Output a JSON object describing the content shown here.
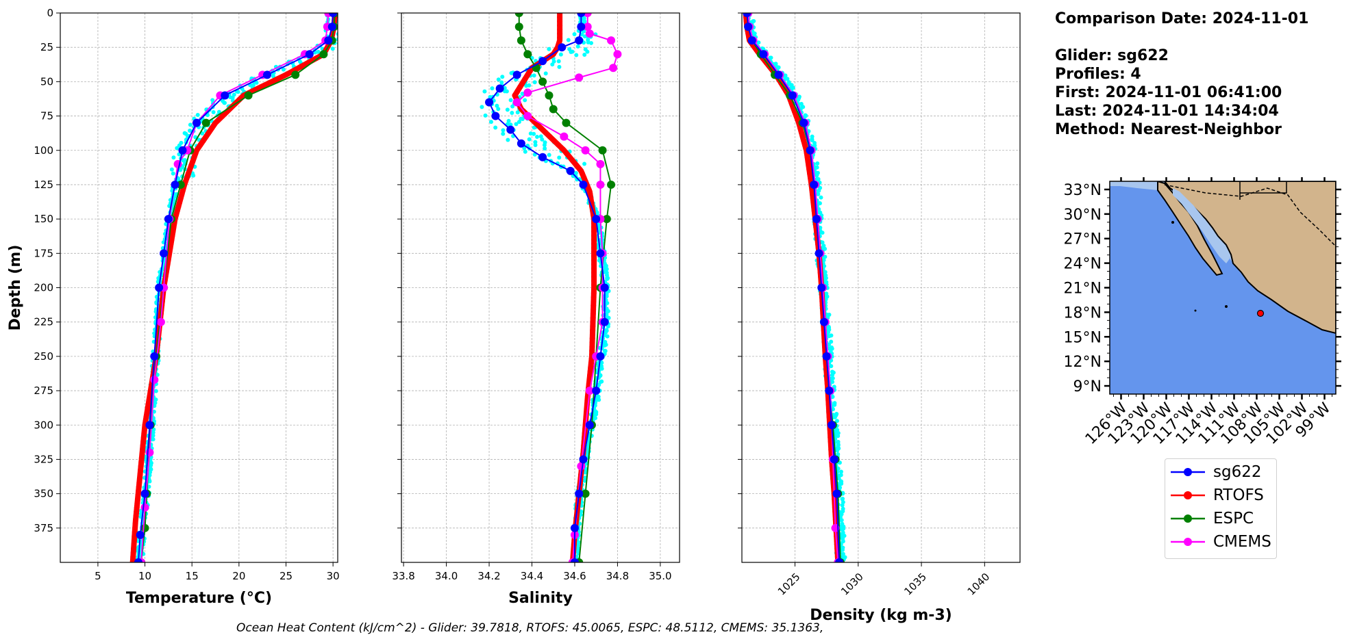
{
  "chart_data": [
    {
      "type": "line",
      "xlabel": "Temperature (°C)",
      "ylabel": "Depth (m)",
      "xlim": [
        1,
        30.5
      ],
      "ylim": [
        400,
        0
      ],
      "xticks": [
        5,
        10,
        15,
        20,
        25,
        30
      ],
      "yticks": [
        0,
        25,
        50,
        75,
        100,
        125,
        150,
        175,
        200,
        225,
        250,
        275,
        300,
        325,
        350,
        375
      ],
      "grid": true,
      "series": [
        {
          "name": "sg622",
          "color": "#0000ff",
          "x": [
            30.0,
            29.9,
            29.5,
            27.5,
            23.0,
            18.5,
            15.5,
            14.0,
            13.2,
            12.5,
            12.0,
            11.5,
            11.0,
            10.5,
            10.0,
            9.5,
            9.3
          ],
          "y": [
            0,
            10,
            20,
            30,
            45,
            60,
            80,
            100,
            125,
            150,
            175,
            200,
            250,
            300,
            350,
            380,
            400
          ]
        },
        {
          "name": "RTOFS",
          "color": "#ff0000",
          "x": [
            30.2,
            30.1,
            29.8,
            29.0,
            25.0,
            20.5,
            17.5,
            15.5,
            14.2,
            13.2,
            12.0,
            11.2,
            10.0,
            9.0,
            8.7
          ],
          "y": [
            0,
            10,
            20,
            30,
            45,
            60,
            80,
            100,
            125,
            150,
            200,
            250,
            300,
            370,
            400
          ]
        },
        {
          "name": "ESPC",
          "color": "#008000",
          "x": [
            30.2,
            30.1,
            29.9,
            29.0,
            26.0,
            21.0,
            16.5,
            14.8,
            13.8,
            12.8,
            12.0,
            11.2,
            10.6,
            10.2,
            10.0,
            9.6
          ],
          "y": [
            0,
            10,
            20,
            30,
            45,
            60,
            80,
            100,
            125,
            150,
            200,
            250,
            300,
            350,
            375,
            400
          ]
        },
        {
          "name": "CMEMS",
          "color": "#ff00ff",
          "x": [
            29.5,
            29.4,
            29.2,
            27.0,
            22.5,
            18.0,
            15.5,
            14.5,
            13.5,
            12.6,
            12.0,
            11.7,
            11.0,
            10.5,
            10.0,
            9.6
          ],
          "y": [
            0,
            10,
            20,
            30,
            45,
            60,
            80,
            100,
            110,
            150,
            200,
            225,
            267,
            320,
            360,
            400
          ]
        }
      ]
    },
    {
      "type": "line",
      "xlabel": "Salinity",
      "xlim": [
        33.79,
        35.09
      ],
      "ylim": [
        400,
        0
      ],
      "xticks": [
        33.8,
        34.0,
        34.2,
        34.4,
        34.6,
        34.8,
        35.0
      ],
      "grid": true,
      "series": [
        {
          "name": "sg622",
          "color": "#0000ff",
          "x": [
            34.63,
            34.63,
            34.62,
            34.54,
            34.45,
            34.33,
            34.25,
            34.2,
            34.23,
            34.3,
            34.35,
            34.45,
            34.58,
            34.64,
            34.7,
            34.72,
            34.74,
            34.74,
            34.72,
            34.7,
            34.67,
            34.64,
            34.62,
            34.6,
            34.6
          ],
          "y": [
            0,
            10,
            20,
            25,
            35,
            45,
            55,
            65,
            75,
            85,
            95,
            105,
            115,
            125,
            150,
            175,
            200,
            225,
            250,
            275,
            300,
            325,
            350,
            375,
            400
          ]
        },
        {
          "name": "RTOFS",
          "color": "#ff0000",
          "x": [
            34.53,
            34.53,
            34.53,
            34.52,
            34.5,
            34.4,
            34.32,
            34.35,
            34.45,
            34.55,
            34.63,
            34.67,
            34.69,
            34.69,
            34.68,
            34.66,
            34.64,
            34.62,
            34.6,
            34.59
          ],
          "y": [
            0,
            10,
            20,
            25,
            30,
            40,
            60,
            70,
            85,
            100,
            115,
            130,
            150,
            200,
            250,
            280,
            320,
            350,
            380,
            400
          ]
        },
        {
          "name": "ESPC",
          "color": "#008000",
          "x": [
            34.34,
            34.34,
            34.35,
            34.38,
            34.42,
            34.45,
            34.48,
            34.5,
            34.56,
            34.73,
            34.77,
            34.75,
            34.72,
            34.7,
            34.68,
            34.65,
            34.62
          ],
          "y": [
            0,
            10,
            20,
            30,
            40,
            50,
            60,
            70,
            80,
            100,
            125,
            150,
            200,
            250,
            300,
            350,
            400
          ]
        },
        {
          "name": "CMEMS",
          "color": "#ff00ff",
          "x": [
            34.66,
            34.66,
            34.67,
            34.77,
            34.8,
            34.78,
            34.62,
            34.38,
            34.33,
            34.38,
            34.55,
            34.65,
            34.72,
            34.72,
            34.72,
            34.73,
            34.73,
            34.73,
            34.7,
            34.67,
            34.63,
            34.6,
            34.59
          ],
          "y": [
            0,
            10,
            15,
            20,
            30,
            40,
            47,
            58,
            65,
            75,
            90,
            100,
            110,
            125,
            150,
            175,
            200,
            225,
            250,
            275,
            330,
            380,
            400
          ]
        }
      ]
    },
    {
      "type": "line",
      "xlabel": "Density (kg m-3)",
      "xlim": [
        1020.8,
        1042.8
      ],
      "ylim": [
        400,
        0
      ],
      "xticks": [
        1025,
        1030,
        1035,
        1040
      ],
      "grid": true,
      "series": [
        {
          "name": "sg622",
          "color": "#0000ff",
          "x": [
            1021.2,
            1021.3,
            1021.6,
            1022.5,
            1023.7,
            1024.8,
            1025.7,
            1026.2,
            1026.5,
            1026.7,
            1026.9,
            1027.1,
            1027.3,
            1027.5,
            1027.7,
            1027.9,
            1028.1,
            1028.3,
            1028.5
          ],
          "y": [
            0,
            10,
            20,
            30,
            45,
            60,
            80,
            100,
            125,
            150,
            175,
            200,
            225,
            250,
            275,
            300,
            325,
            350,
            400
          ]
        },
        {
          "name": "RTOFS",
          "color": "#ff0000",
          "x": [
            1021.1,
            1021.2,
            1021.4,
            1022.2,
            1023.5,
            1024.5,
            1025.3,
            1025.9,
            1026.3,
            1026.6,
            1026.9,
            1027.1,
            1027.4,
            1027.6,
            1027.9,
            1028.1,
            1028.4
          ],
          "y": [
            0,
            10,
            20,
            30,
            45,
            60,
            80,
            100,
            125,
            150,
            175,
            200,
            250,
            275,
            325,
            350,
            400
          ]
        },
        {
          "name": "ESPC",
          "color": "#008000",
          "x": [
            1021.2,
            1021.3,
            1021.6,
            1022.3,
            1023.4,
            1024.6,
            1025.6,
            1026.2,
            1026.5,
            1026.8,
            1027.0,
            1027.2,
            1027.5,
            1027.7,
            1028.0,
            1028.2,
            1028.4,
            1028.6
          ],
          "y": [
            0,
            10,
            20,
            30,
            45,
            60,
            80,
            100,
            125,
            150,
            175,
            200,
            250,
            275,
            300,
            325,
            350,
            400
          ]
        },
        {
          "name": "CMEMS",
          "color": "#ff00ff",
          "x": [
            1021.3,
            1021.4,
            1021.7,
            1022.6,
            1023.8,
            1024.9,
            1025.8,
            1026.3,
            1026.6,
            1026.8,
            1027.0,
            1027.2,
            1027.4,
            1027.6,
            1027.8,
            1028.0,
            1028.2,
            1028.4
          ],
          "y": [
            0,
            10,
            20,
            30,
            45,
            60,
            80,
            100,
            125,
            150,
            175,
            200,
            225,
            250,
            275,
            325,
            375,
            400
          ]
        }
      ]
    }
  ],
  "map": {
    "lon_labels": [
      "126°W",
      "123°W",
      "120°W",
      "117°W",
      "114°W",
      "111°W",
      "108°W",
      "105°W",
      "102°W",
      "99°W"
    ],
    "lat_labels": [
      "33°N",
      "30°N",
      "27°N",
      "24°N",
      "21°N",
      "18°N",
      "15°N",
      "12°N",
      "9°N"
    ],
    "glider_marker_color": "#ff0000",
    "ocean_color": "#6495ed",
    "land_color": "#d2b48c"
  },
  "info": {
    "comparison": "Comparison Date: 2024-11-01",
    "glider": "Glider: sg622",
    "profiles": "Profiles: 4",
    "first": "First: 2024-11-01 06:41:00",
    "last": "Last: 2024-11-01 14:34:04",
    "method": "Method: Nearest-Neighbor"
  },
  "legend": [
    {
      "label": "sg622",
      "color": "#0000ff"
    },
    {
      "label": "RTOFS",
      "color": "#ff0000"
    },
    {
      "label": "ESPC",
      "color": "#008000"
    },
    {
      "label": "CMEMS",
      "color": "#ff00ff"
    }
  ],
  "footer": "Ocean Heat Content (kJ/cm^2) - Glider: 39.7818,  RTOFS: 45.0065,  ESPC: 48.5112,  CMEMS: 35.1363,",
  "colors": {
    "glider_raw": "#00ffff",
    "grid": "#b0b0b0"
  }
}
